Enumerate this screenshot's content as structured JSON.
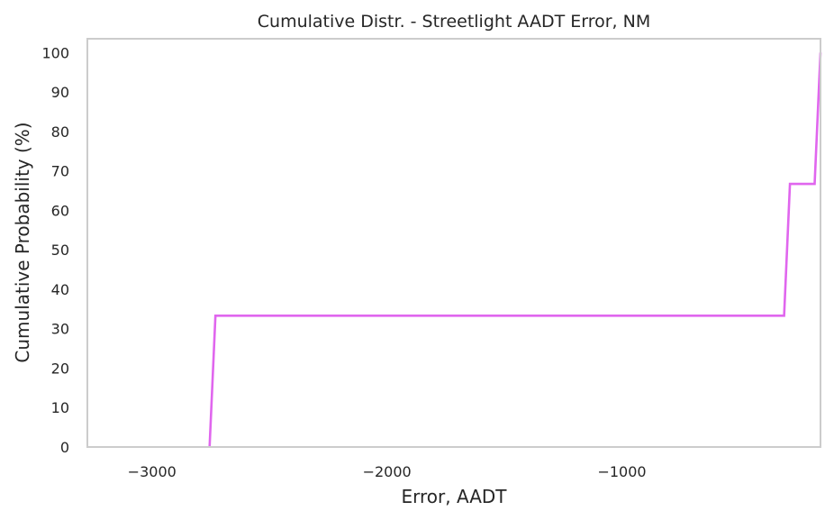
{
  "chart_data": {
    "type": "line",
    "title": "Cumulative Distr. - Streetlight AADT Error, NM",
    "xlabel": "Error, AADT",
    "ylabel": "Cumulative Probability (%)",
    "xlim": [
      -3275,
      -155
    ],
    "ylim": [
      0,
      103.5
    ],
    "xticks": [
      -3000,
      -2000,
      -1000
    ],
    "xtick_labels": [
      "−3000",
      "−2000",
      "−1000"
    ],
    "yticks": [
      0,
      10,
      20,
      30,
      40,
      50,
      60,
      70,
      80,
      90,
      100
    ],
    "ytick_labels": [
      "0",
      "10",
      "20",
      "30",
      "40",
      "50",
      "60",
      "70",
      "80",
      "90",
      "100"
    ],
    "grid": false,
    "series": [
      {
        "color": "#e066ee",
        "x": [
          -2755,
          -2730,
          -310,
          -285,
          -180,
          -155
        ],
        "y": [
          0,
          33.3,
          33.3,
          66.7,
          66.7,
          100
        ]
      }
    ]
  }
}
